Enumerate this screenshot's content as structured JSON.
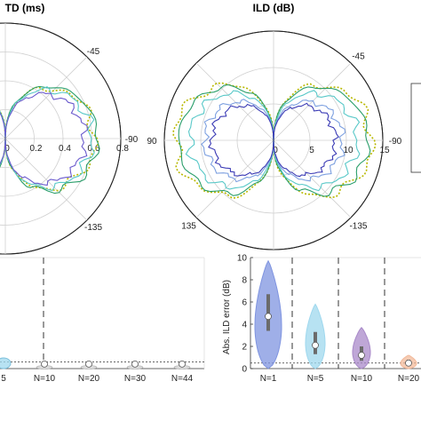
{
  "figure": {
    "itd_title": "TD (ms)",
    "ild_title": "ILD (dB)",
    "violin_ylabel": "Abs. ILD error (dB)"
  },
  "chart_data": [
    {
      "type": "polar",
      "title": "TD (ms)",
      "angle_labels": [
        "-45",
        "-90",
        "-135"
      ],
      "radial_ticks": [
        0,
        0.2,
        0.4,
        0.6,
        0.8
      ],
      "radial_tick_labels": [
        "0",
        "0.2",
        "0.4",
        "0.6",
        "0.8"
      ],
      "rlim": [
        0,
        0.8
      ],
      "series": [
        {
          "color": "#b8b800",
          "style": "dotted",
          "role": "reference",
          "peak": 0.62
        },
        {
          "color": "#2a9e6a",
          "style": "solid",
          "peak": 0.64
        },
        {
          "color": "#58c8c8",
          "style": "solid",
          "peak": 0.6
        },
        {
          "color": "#6a5acd",
          "style": "solid",
          "peak": 0.55
        }
      ]
    },
    {
      "type": "polar",
      "title": "ILD (dB)",
      "angle_labels": [
        "-45",
        "-90",
        "-135",
        "135",
        "90"
      ],
      "radial_ticks": [
        0,
        5,
        10,
        15
      ],
      "radial_tick_labels": [
        "0",
        "5",
        "10",
        "15"
      ],
      "rlim": [
        0,
        15
      ],
      "series": [
        {
          "color": "#b8b800",
          "style": "dotted",
          "role": "reference",
          "peak": 13.5
        },
        {
          "color": "#2a9e6a",
          "style": "solid",
          "peak": 13.0
        },
        {
          "color": "#58c8c8",
          "style": "solid",
          "peak": 11.5
        },
        {
          "color": "#7da0e0",
          "style": "solid",
          "peak": 9.5
        },
        {
          "color": "#3b3bb5",
          "style": "solid",
          "peak": 8.5
        }
      ]
    },
    {
      "type": "violin",
      "ylabel": "",
      "categories": [
        "5",
        "N=10",
        "N=20",
        "N=30",
        "N=44"
      ],
      "medians": [
        0.3,
        0.05,
        0.05,
        0.05,
        0.05
      ],
      "reference_line": 0.12,
      "ylim": [
        0,
        2
      ]
    },
    {
      "type": "violin",
      "ylabel": "Abs. ILD error (dB)",
      "categories": [
        "N=1",
        "N=5",
        "N=10",
        "N=20"
      ],
      "yticks": [
        0,
        2,
        4,
        6,
        8,
        10
      ],
      "ytick_labels": [
        "0",
        "2",
        "4",
        "6",
        "8",
        "10"
      ],
      "ylim": [
        0,
        10
      ],
      "reference_line": 0.5,
      "medians": [
        4.7,
        2.1,
        1.2,
        0.5
      ],
      "q1": [
        3.4,
        1.3,
        0.7,
        0.3
      ],
      "q3": [
        6.7,
        3.3,
        2.0,
        0.8
      ],
      "max": [
        9.7,
        5.8,
        3.7,
        1.2
      ],
      "min": [
        0.0,
        0.0,
        0.0,
        0.0
      ],
      "colors": [
        "#7f94e0",
        "#9fd8ee",
        "#a98ac9",
        "#f2b99a"
      ]
    }
  ]
}
